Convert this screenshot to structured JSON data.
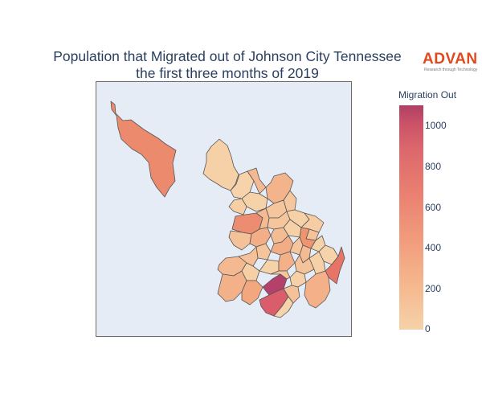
{
  "title": {
    "line1": "Population that Migrated out of Johnson City Tennessee",
    "line2": "the first three months of 2019"
  },
  "logo": {
    "word": "ADVAN",
    "tagline": "Research through Technology"
  },
  "colorbar": {
    "title": "Migration Out",
    "ticks": [
      "1000",
      "800",
      "600",
      "400",
      "200",
      "0"
    ]
  },
  "colors": {
    "background": "#e5ecf6",
    "border": "#6b6b6b",
    "scale": [
      "#f6d2a9",
      "#f5b78e",
      "#f19c7c",
      "#ea8171",
      "#dd686c",
      "#ca5268",
      "#b13f64"
    ]
  }
}
